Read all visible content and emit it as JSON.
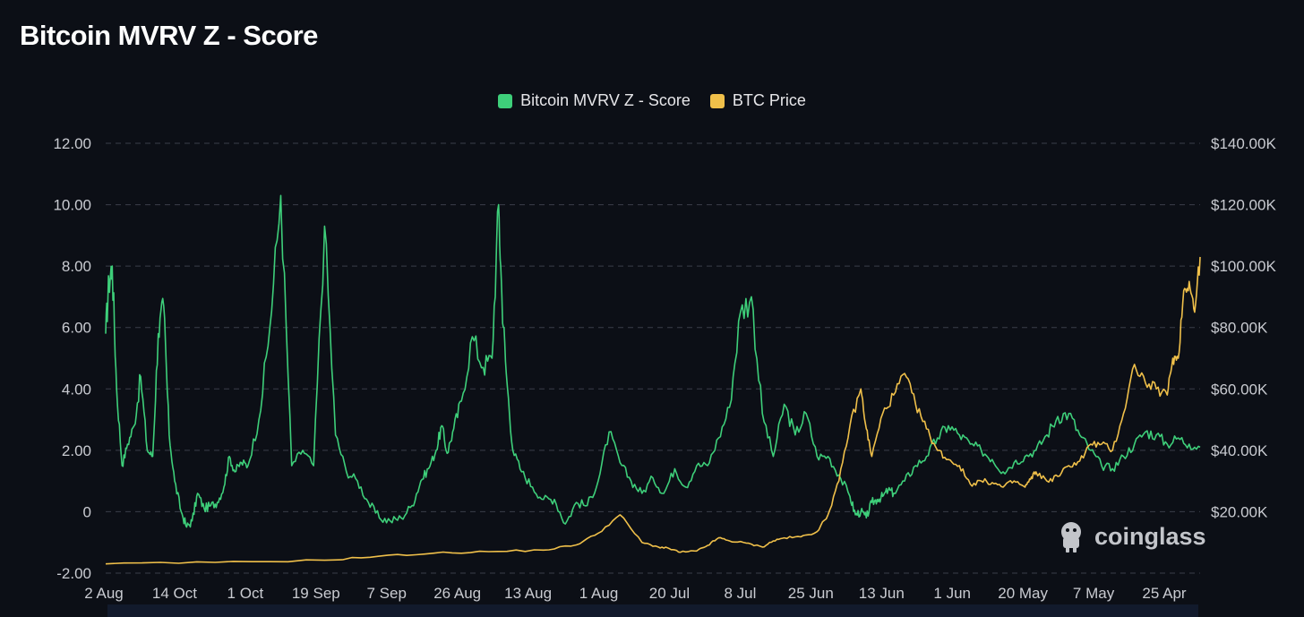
{
  "title": "Bitcoin MVRV Z - Score",
  "watermark": "coinglass",
  "colors": {
    "background": "#0c0f16",
    "mvrv": "#3ecf7a",
    "price": "#f0c04a",
    "grid": "#3a3f4a",
    "axis_text": "#c9cbd1"
  },
  "chart_data": {
    "type": "line",
    "title": "Bitcoin MVRV Z - Score",
    "legend": [
      {
        "name": "Bitcoin MVRV Z - Score",
        "color": "#3ecf7a"
      },
      {
        "name": "BTC Price",
        "color": "#f0c04a"
      }
    ],
    "x_ticks": [
      "2 Aug",
      "14 Oct",
      "1 Oct",
      "19 Sep",
      "7 Sep",
      "26 Aug",
      "13 Aug",
      "1 Aug",
      "20 Jul",
      "8 Jul",
      "25 Jun",
      "13 Jun",
      "1 Jun",
      "20 May",
      "7 May",
      "25 Apr"
    ],
    "y_left": {
      "label": "",
      "ticks": [
        "12.00",
        "10.00",
        "8.00",
        "6.00",
        "4.00",
        "2.00",
        "0",
        "-2.00"
      ],
      "ylim": [
        -2,
        12
      ]
    },
    "y_right": {
      "label": "",
      "ticks": [
        "$140.00K",
        "$120.00K",
        "$100.00K",
        "$80.00K",
        "$60.00K",
        "$40.00K",
        "$20.00K"
      ],
      "ylim": [
        0,
        140000
      ]
    },
    "x_range": [
      0,
      100
    ],
    "series": [
      {
        "name": "Bitcoin MVRV Z - Score",
        "axis": "left",
        "x": [
          0,
          0.3,
          0.6,
          1.0,
          1.5,
          2.0,
          2.6,
          3.2,
          3.8,
          4.3,
          4.8,
          5.3,
          5.8,
          6.3,
          6.9,
          7.4,
          7.9,
          8.4,
          9.0,
          9.6,
          10.2,
          10.8,
          11.3,
          11.8,
          12.4,
          13.0,
          14.0,
          15.0,
          16.0,
          17.0,
          18.0,
          19.0,
          20.0,
          21.0,
          22.0,
          23.0,
          24.0,
          25.0,
          26.0,
          27.0,
          28.0,
          28.8,
          29.5,
          30.2,
          30.7,
          31.2,
          31.8,
          32.5,
          33.5,
          34.5,
          35.3,
          35.9,
          36.2,
          36.6,
          37.2,
          38.0,
          39.0,
          40.0,
          41.0,
          42.0,
          43.0,
          44.0,
          45.0,
          46.0,
          47.0,
          48.0,
          49.0,
          50.0,
          51.0,
          52.0,
          53.0,
          54.0,
          55.0,
          56.0,
          57.0,
          58.0,
          59.0,
          60.0,
          61.0,
          62.0,
          63.0,
          64.0,
          65.0,
          66.0,
          67.0,
          68.0,
          68.5,
          69.0,
          69.5,
          70.0,
          70.5,
          71.0,
          71.5,
          72.0,
          73.0,
          74.0,
          75.0,
          76.0,
          77.0,
          78.0,
          79.0,
          80.0,
          81.0,
          82.0,
          83.0,
          84.0,
          85.0,
          86.0,
          87.0,
          88.0,
          89.0,
          90.0,
          91.0,
          92.0,
          93.0,
          94.0,
          95.0,
          96.0,
          97.0,
          98.0,
          99.0,
          100.0
        ],
        "values": [
          5.8,
          7.5,
          8.0,
          4.0,
          1.5,
          2.2,
          2.8,
          4.4,
          2.0,
          1.8,
          5.8,
          6.7,
          2.5,
          1.0,
          0.0,
          -0.5,
          -0.3,
          0.6,
          0.1,
          0.2,
          0.3,
          0.8,
          1.8,
          1.3,
          1.6,
          1.5,
          3.0,
          6.0,
          10.3,
          1.5,
          2.0,
          1.5,
          9.3,
          2.5,
          1.3,
          1.0,
          0.3,
          -0.2,
          -0.3,
          -0.2,
          0.2,
          1.0,
          1.4,
          2.0,
          2.8,
          1.9,
          2.7,
          3.6,
          5.7,
          4.7,
          5.0,
          10.0,
          7.0,
          4.5,
          2.0,
          1.3,
          0.8,
          0.4,
          0.4,
          -0.4,
          0.3,
          0.2,
          1.0,
          2.6,
          1.6,
          1.0,
          0.6,
          1.1,
          0.6,
          1.4,
          0.8,
          1.5,
          1.5,
          2.4,
          3.4,
          6.5,
          7.0,
          3.2,
          1.8,
          3.5,
          2.5,
          3.2,
          1.8,
          1.8,
          1.2,
          0.5,
          -0.1,
          0.0,
          -0.2,
          0.3,
          0.4,
          0.5,
          0.7,
          0.6,
          1.0,
          1.5,
          1.8,
          2.4,
          2.8,
          2.5,
          2.2,
          2.0,
          1.7,
          1.3,
          1.6,
          1.8,
          2.0,
          2.5,
          3.1,
          3.2,
          2.5,
          2.0,
          1.5,
          1.4,
          1.8,
          2.2,
          2.6,
          2.5,
          2.2,
          2.4,
          2.2,
          2.1
        ],
        "x_note": "values read left-to-right across chart width (0 = left edge at 2 Aug, 100 = right edge near 25 Apr)"
      },
      {
        "name": "BTC Price",
        "axis": "right",
        "x": [
          0,
          10,
          20,
          25,
          30,
          35,
          40,
          43,
          45,
          47,
          49,
          50.5,
          51.5,
          52.5,
          54.0,
          55.0,
          56.0,
          57.0,
          58.5,
          60.0,
          61.0,
          62.0,
          63.5,
          65.0,
          66.0,
          67.0,
          68.0,
          69.0,
          69.5,
          70.0,
          71.0,
          72.0,
          73.0,
          74.0,
          75.0,
          76.0,
          77.0,
          78.0,
          79.0,
          80.0,
          81.0,
          82.0,
          83.0,
          84.0,
          84.5,
          85.0,
          86.0,
          87.0,
          88.0,
          89.0,
          90.0,
          91.0,
          92.0,
          93.0,
          94.0,
          95.0,
          96.0,
          97.0,
          97.5,
          98.0,
          98.5,
          99.0,
          99.5,
          100.0
        ],
        "values": [
          3000,
          3500,
          4200,
          5500,
          6500,
          7000,
          7500,
          9200,
          13000,
          19000,
          10000,
          8500,
          8000,
          6800,
          7200,
          9000,
          11500,
          10500,
          9800,
          8500,
          10500,
          11500,
          11800,
          13500,
          19000,
          30000,
          48000,
          60000,
          47000,
          38000,
          52000,
          58000,
          65000,
          55000,
          47000,
          40000,
          37000,
          35000,
          29000,
          30000,
          29500,
          28000,
          30000,
          28000,
          30500,
          33000,
          30000,
          31500,
          35000,
          36500,
          42000,
          42000,
          40000,
          52000,
          68000,
          62000,
          60000,
          58000,
          70000,
          70000,
          92000,
          95000,
          85000,
          103000
        ],
        "x_note": "price values left-to-right across chart width"
      }
    ]
  }
}
